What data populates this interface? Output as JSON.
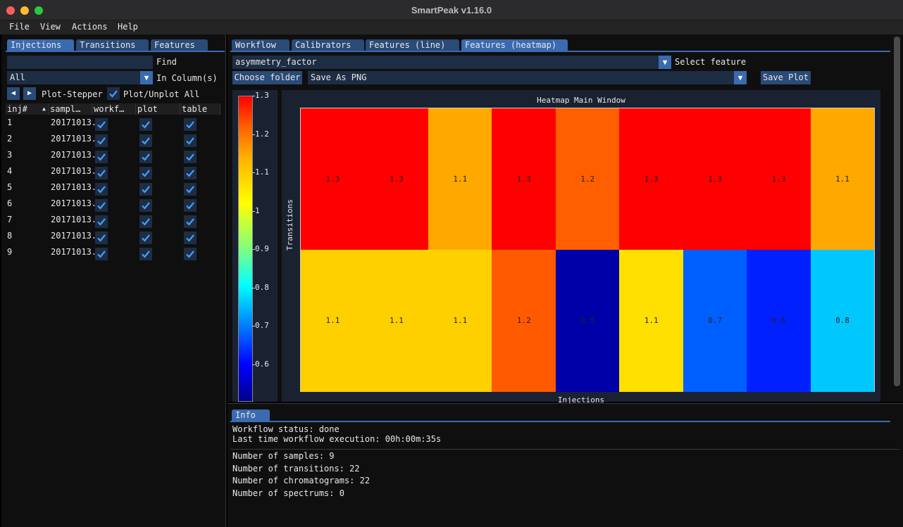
{
  "window": {
    "title": "SmartPeak v1.16.0"
  },
  "menu": [
    "File",
    "View",
    "Actions",
    "Help"
  ],
  "left": {
    "tabs": [
      "Injections",
      "Transitions",
      "Features"
    ],
    "find_label": "Find",
    "column_select": "All",
    "in_columns_label": "In Column(s)",
    "stepper_label": "Plot-Stepper",
    "plot_all_label": "Plot/Unplot All",
    "headers": [
      "inj#",
      "sampl…",
      "workf…",
      "plot",
      "table"
    ],
    "rows": [
      {
        "inj": "1",
        "sample": "20171013."
      },
      {
        "inj": "2",
        "sample": "20171013."
      },
      {
        "inj": "3",
        "sample": "20171013."
      },
      {
        "inj": "4",
        "sample": "20171013."
      },
      {
        "inj": "5",
        "sample": "20171013."
      },
      {
        "inj": "6",
        "sample": "20171013."
      },
      {
        "inj": "7",
        "sample": "20171013."
      },
      {
        "inj": "8",
        "sample": "20171013."
      },
      {
        "inj": "9",
        "sample": "20171013."
      }
    ]
  },
  "right": {
    "tabs": [
      "Workflow",
      "Calibrators",
      "Features (line)",
      "Features (heatmap)"
    ],
    "feature_value": "asymmetry_factor",
    "select_feature_label": "Select feature",
    "choose_folder": "Choose folder",
    "save_format": "Save As PNG",
    "save_plot": "Save Plot"
  },
  "heatmap": {
    "title": "Heatmap Main Window",
    "ylabel": "Transitions",
    "xlabel": "Injections",
    "colorbar_ticks": [
      "1.3",
      "1.2",
      "1.1",
      "1",
      "0.9",
      "0.8",
      "0.7",
      "0.6"
    ]
  },
  "chart_data": {
    "type": "heatmap",
    "title": "Heatmap Main Window",
    "xlabel": "Injections",
    "ylabel": "Transitions",
    "rows": [
      [
        1.3,
        1.3,
        1.1,
        1.3,
        1.2,
        1.3,
        1.3,
        1.3,
        1.1
      ],
      [
        1.1,
        1.1,
        1.1,
        1.2,
        0.5,
        1.1,
        0.7,
        0.6,
        0.8
      ]
    ],
    "colors": [
      [
        "#ff0000",
        "#ff0000",
        "#ffa800",
        "#ff0000",
        "#ff5f00",
        "#ff0000",
        "#ff0000",
        "#ff0000",
        "#ffa800"
      ],
      [
        "#ffd000",
        "#ffd000",
        "#ffd000",
        "#ff5a00",
        "#0000a8",
        "#ffe000",
        "#0060ff",
        "#0020ff",
        "#00c8ff"
      ]
    ],
    "colorbar_range": [
      0.5,
      1.3
    ]
  },
  "info": {
    "tab": "Info",
    "lines_top": [
      "Workflow status: done",
      "Last time workflow execution: 00h:00m:35s"
    ],
    "lines_bottom": [
      "Number of samples: 9",
      "Number of transitions: 22",
      "Number of chromatograms: 22",
      "Number of spectrums: 0"
    ]
  }
}
